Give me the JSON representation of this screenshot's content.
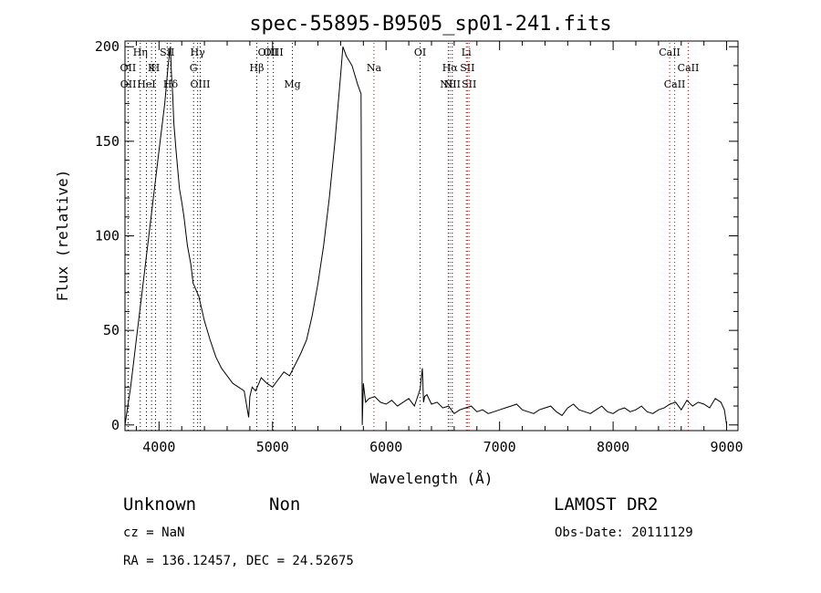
{
  "chart_data": {
    "type": "line",
    "title": "spec-55895-B9505_sp01-241.fits",
    "xlabel": "Wavelength (Å)",
    "ylabel": "Flux (relative)",
    "xlim": [
      3700,
      9100
    ],
    "ylim": [
      -3,
      203
    ],
    "x_ticks": [
      4000,
      5000,
      6000,
      7000,
      8000,
      9000
    ],
    "y_ticks": [
      0,
      50,
      100,
      150,
      200
    ],
    "grid": false,
    "series": [
      {
        "x": [
          3700,
          3750,
          3800,
          3850,
          3900,
          3950,
          4000,
          4050,
          4080,
          4100,
          4110,
          4120,
          4130,
          4150,
          4180,
          4200,
          4220,
          4250,
          4280,
          4300,
          4350,
          4400,
          4450,
          4500,
          4550,
          4600,
          4650,
          4700,
          4750,
          4790,
          4800,
          4820,
          4850,
          4880,
          4900,
          4950,
          5000,
          5050,
          5100,
          5150,
          5200,
          5250,
          5300,
          5350,
          5400,
          5450,
          5500,
          5550,
          5600,
          5620,
          5650,
          5700,
          5750,
          5780,
          5790,
          5800,
          5820,
          5850,
          5900,
          5950,
          6000,
          6050,
          6100,
          6150,
          6200,
          6250,
          6300,
          6320,
          6330,
          6340,
          6360,
          6400,
          6450,
          6500,
          6550,
          6600,
          6650,
          6700,
          6750,
          6800,
          6850,
          6900,
          6950,
          7000,
          7050,
          7100,
          7150,
          7200,
          7250,
          7300,
          7350,
          7400,
          7450,
          7500,
          7550,
          7600,
          7650,
          7700,
          7750,
          7800,
          7850,
          7900,
          7950,
          8000,
          8050,
          8100,
          8150,
          8200,
          8250,
          8300,
          8350,
          8400,
          8450,
          8500,
          8550,
          8600,
          8650,
          8700,
          8750,
          8800,
          8850,
          8900,
          8950,
          8980,
          9000
        ],
        "y": [
          0,
          20,
          45,
          70,
          95,
          120,
          145,
          170,
          190,
          200,
          185,
          175,
          160,
          145,
          125,
          118,
          110,
          95,
          85,
          75,
          68,
          55,
          45,
          36,
          30,
          26,
          22,
          20,
          18,
          4,
          15,
          20,
          18,
          22,
          25,
          22,
          20,
          24,
          28,
          26,
          32,
          38,
          45,
          58,
          75,
          95,
          120,
          150,
          185,
          200,
          195,
          190,
          180,
          175,
          0,
          22,
          12,
          14,
          15,
          12,
          11,
          13,
          10,
          12,
          14,
          10,
          19,
          30,
          12,
          15,
          16,
          11,
          12,
          9,
          10,
          6,
          8,
          9,
          10,
          7,
          8,
          6,
          7,
          8,
          9,
          10,
          11,
          8,
          7,
          6,
          8,
          9,
          10,
          7,
          5,
          9,
          11,
          8,
          7,
          6,
          8,
          10,
          7,
          6,
          8,
          9,
          7,
          8,
          10,
          7,
          6,
          8,
          9,
          11,
          12,
          8,
          13,
          10,
          12,
          11,
          9,
          14,
          12,
          8,
          0
        ]
      }
    ],
    "spectral_lines": [
      {
        "label": "OII",
        "x": 3727,
        "row": 2,
        "color": "#000000"
      },
      {
        "label": "OII",
        "x": 3729,
        "row": 3,
        "color": "#000000"
      },
      {
        "label": "Hη",
        "x": 3835,
        "row": 1,
        "color": "#000000"
      },
      {
        "label": "HeI",
        "x": 3889,
        "row": 3,
        "color": "#000000"
      },
      {
        "label": "K",
        "x": 3934,
        "row": 2,
        "color": "#000000"
      },
      {
        "label": "H",
        "x": 3969,
        "row": 2,
        "color": "#000000"
      },
      {
        "label": "SII",
        "x": 4072,
        "row": 1,
        "color": "#000000"
      },
      {
        "label": "Hδ",
        "x": 4102,
        "row": 3,
        "color": "#000000"
      },
      {
        "label": "Hγ",
        "x": 4340,
        "row": 1,
        "color": "#000000"
      },
      {
        "label": "G",
        "x": 4304,
        "row": 2,
        "color": "#000000"
      },
      {
        "label": "OIII",
        "x": 4363,
        "row": 3,
        "color": "#000000"
      },
      {
        "label": "Hβ",
        "x": 4861,
        "row": 2,
        "color": "#000000"
      },
      {
        "label": "OIII",
        "x": 4959,
        "row": 1,
        "color": "#000000"
      },
      {
        "label": "OIII",
        "x": 5007,
        "row": 1,
        "color": "#000000"
      },
      {
        "label": "Mg",
        "x": 5175,
        "row": 3,
        "color": "#000000"
      },
      {
        "label": "Na",
        "x": 5893,
        "row": 2,
        "color": "#cc0000"
      },
      {
        "label": "OI",
        "x": 6300,
        "row": 1,
        "color": "#000000"
      },
      {
        "label": "Hα",
        "x": 6563,
        "row": 2,
        "color": "#cc0000"
      },
      {
        "label": "NII",
        "x": 6548,
        "row": 3,
        "color": "#000000"
      },
      {
        "label": "NII",
        "x": 6583,
        "row": 3,
        "color": "#000000"
      },
      {
        "label": "Li",
        "x": 6707,
        "row": 1,
        "color": "#cc0000"
      },
      {
        "label": "SII",
        "x": 6716,
        "row": 2,
        "color": "#cc0000"
      },
      {
        "label": "SII",
        "x": 6731,
        "row": 3,
        "color": "#cc0000"
      },
      {
        "label": "CaII",
        "x": 8498,
        "row": 1,
        "color": "#cc0000"
      },
      {
        "label": "CaII",
        "x": 8542,
        "row": 3,
        "color": "#cc0000"
      },
      {
        "label": "CaII",
        "x": 8662,
        "row": 2,
        "color": "#cc0000"
      }
    ]
  },
  "footer": {
    "class_text": "Unknown",
    "subclass_text": "Non",
    "cz_text": "cz = NaN",
    "radec_text": "RA = 136.12457, DEC =  24.52675",
    "survey_text": "LAMOST DR2",
    "obsdate_text": "Obs-Date: 20111129"
  }
}
